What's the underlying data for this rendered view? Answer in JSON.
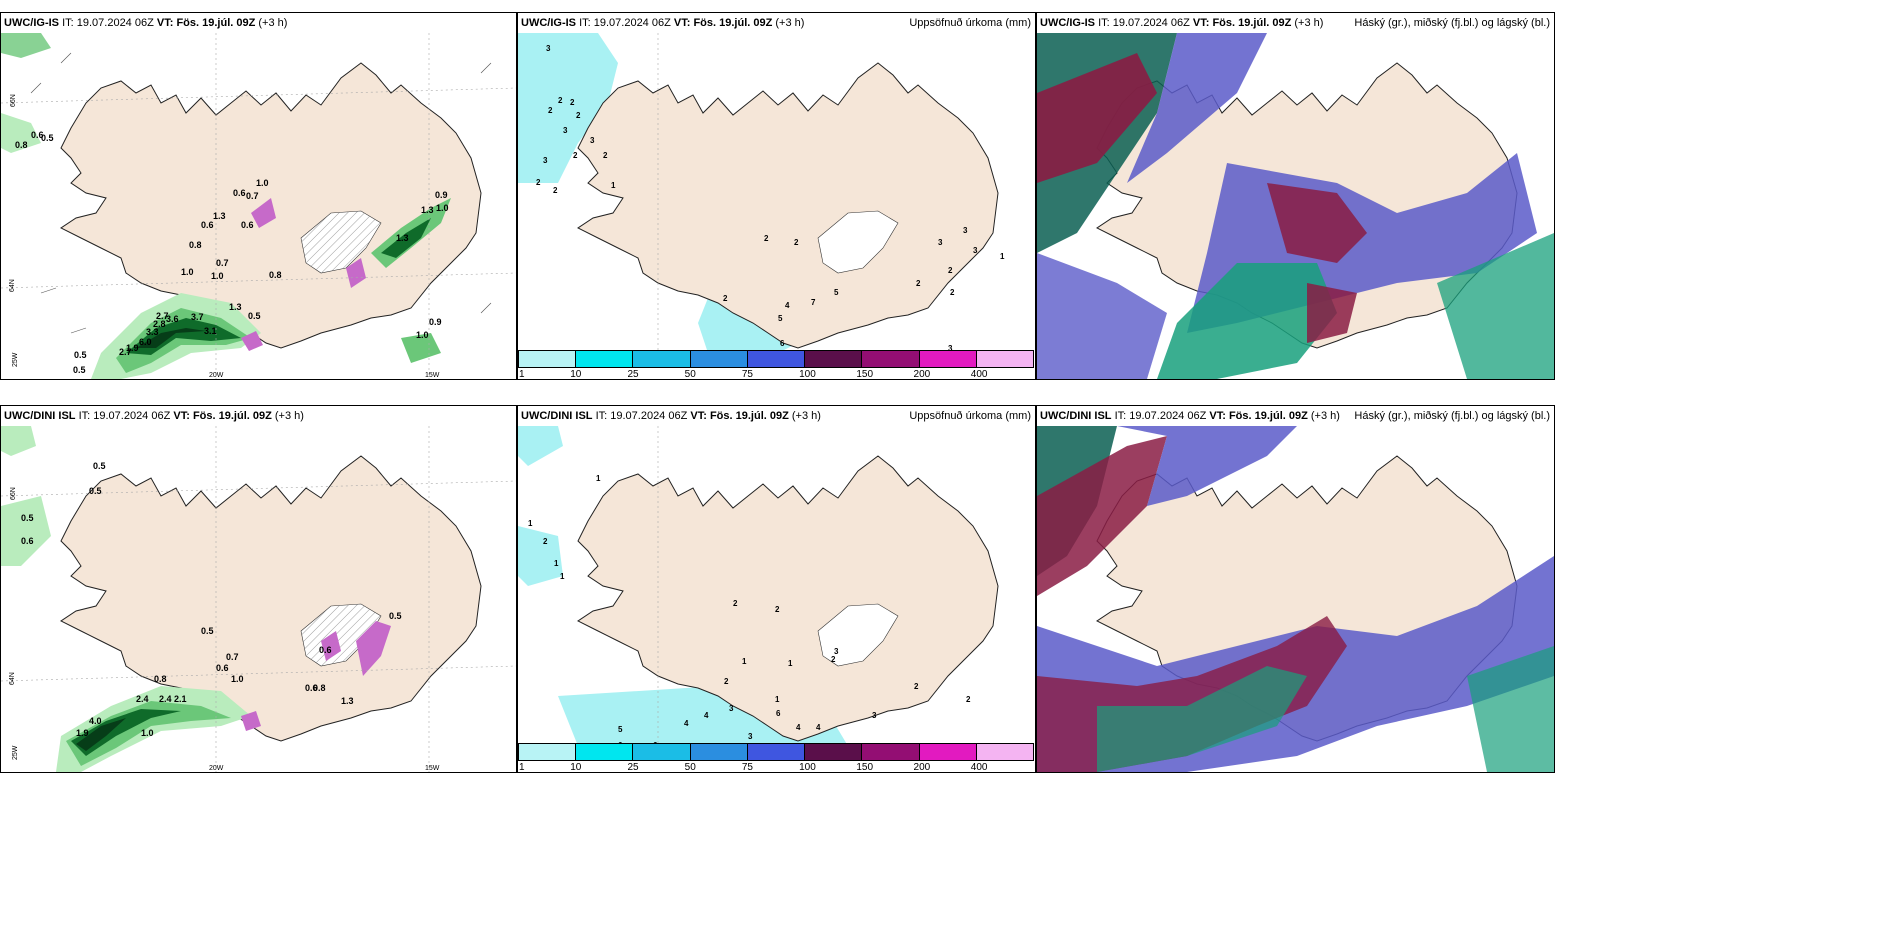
{
  "colors": {
    "land": "#f5e6d8",
    "sea": "#ffffff",
    "coast": "#222222",
    "green_light": "#b9ecbd",
    "green_mid": "#6bc779",
    "green_dark": "#0f6b2a",
    "green_darkest": "#063d18",
    "magenta": "#c66ac9",
    "cyan_precip": "#a9f1f3",
    "cloud_high": "#5b5bc9",
    "cloud_mid": "#8a1c44",
    "cloud_low": "#18a07c"
  },
  "rows": [
    {
      "model": "UWC/IG-IS",
      "it_label": "IT:",
      "it_value": "19.07.2024 06Z",
      "vt_label": "VT:",
      "vt_value": "Fös. 19.júl. 09Z",
      "lead": "(+3 h)",
      "lon_labels": [
        "20W",
        "15W"
      ],
      "lat_labels": [
        "66N",
        "64N",
        "25W"
      ],
      "precip_values": [
        "0.8",
        "0.6",
        "0.5",
        "1.0",
        "0.6",
        "0.7",
        "0.6",
        "1.3",
        "0.6",
        "0.8",
        "0.7",
        "1.0",
        "1.0",
        "0.8",
        "1.3",
        "0.9",
        "1.0",
        "1.3",
        "2.7",
        "2.8",
        "3.3",
        "6.0",
        "2.7",
        "1.9",
        "3.6",
        "3.1",
        "3.7",
        "1.3",
        "0.5",
        "0.5",
        "0.5",
        "0.9",
        "1.0"
      ]
    },
    {
      "model": "UWC/DINI ISL",
      "it_label": "IT:",
      "it_value": "19.07.2024 06Z",
      "vt_label": "VT:",
      "vt_value": "Fös. 19.júl. 09Z",
      "lead": "(+3 h)",
      "lon_labels": [
        "20W",
        "15W"
      ],
      "lat_labels": [
        "66N",
        "64N",
        "25W"
      ],
      "precip_values": [
        "0.5",
        "0.5",
        "0.5",
        "0.6",
        "0.5",
        "0.7",
        "0.6",
        "1.0",
        "0.8",
        "2.4",
        "2.4",
        "2.1",
        "4.0",
        "1.9",
        "1.0",
        "0.6",
        "0.8",
        "1.3",
        "0.6",
        "0.5"
      ]
    }
  ],
  "accum_title": "Uppsöfnuð úrkoma (mm)",
  "cloud_title": "Háský (gr.), miðský (fj.bl.) og lágský (bl.)",
  "colorbar": {
    "ticks": [
      "1",
      "10",
      "25",
      "50",
      "75",
      "100",
      "150",
      "200",
      "400"
    ],
    "colors": [
      "#b8f3f5",
      "#00e6ef",
      "#1bbde6",
      "#2b8ee0",
      "#3f56e0",
      "#5a0f4a",
      "#930e73",
      "#e21ac0",
      "#f4b4f2"
    ]
  },
  "accum_labels_top": [
    "3",
    "2",
    "2",
    "2",
    "2",
    "3",
    "3",
    "2",
    "2",
    "1",
    "3",
    "2",
    "2",
    "2",
    "2",
    "5",
    "7",
    "2",
    "4",
    "5",
    "6",
    "4",
    "8",
    "3",
    "3",
    "3",
    "2",
    "2",
    "2",
    "1",
    "3"
  ],
  "accum_labels_bottom": [
    "1",
    "1",
    "2",
    "1",
    "1",
    "2",
    "2",
    "1",
    "1",
    "2",
    "1",
    "3",
    "6",
    "4",
    "4",
    "5",
    "4",
    "4",
    "6",
    "6",
    "3",
    "3",
    "2",
    "2",
    "3",
    "2"
  ]
}
